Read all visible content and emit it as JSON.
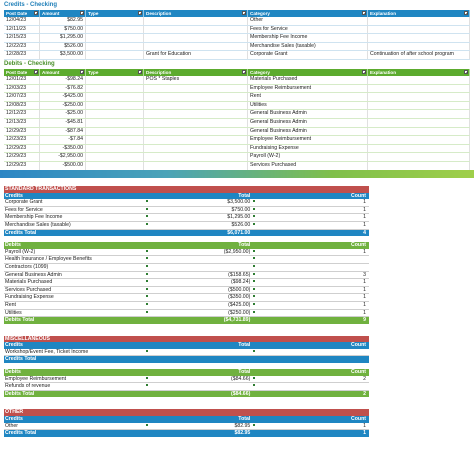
{
  "ledger_headers": {
    "post_date": "Post Date",
    "amount": "Amount",
    "type": "Type",
    "description": "Description",
    "category": "Category",
    "explanation": "Explanation"
  },
  "credits": {
    "title": "Credits - Checking",
    "rows": [
      {
        "date": "12/04/23",
        "amount": "$82.95",
        "type": "",
        "description": "",
        "category": "Other",
        "explanation": ""
      },
      {
        "date": "12/11/23",
        "amount": "$750.00",
        "type": "",
        "description": "",
        "category": "Fees for Service",
        "explanation": ""
      },
      {
        "date": "12/15/23",
        "amount": "$1,295.00",
        "type": "",
        "description": "",
        "category": "Membership Fee Income",
        "explanation": ""
      },
      {
        "date": "12/22/23",
        "amount": "$526.00",
        "type": "",
        "description": "",
        "category": "Merchandise Sales (taxable)",
        "explanation": ""
      },
      {
        "date": "12/28/23",
        "amount": "$3,500.00",
        "type": "",
        "description": "Grant for Education",
        "category": "Corporate Grant",
        "explanation": "Continuation of after school program"
      }
    ]
  },
  "debits": {
    "title": "Debits - Checking",
    "rows": [
      {
        "date": "12/01/23",
        "amount": "-$98.24",
        "type": "",
        "description": "POS * Staples",
        "category": "Materials Purchased",
        "explanation": ""
      },
      {
        "date": "12/03/23",
        "amount": "-$76.82",
        "type": "",
        "description": "",
        "category": "Employee Reimbursement",
        "explanation": ""
      },
      {
        "date": "12/07/23",
        "amount": "-$425.00",
        "type": "",
        "description": "",
        "category": "Rent",
        "explanation": ""
      },
      {
        "date": "12/08/23",
        "amount": "-$250.00",
        "type": "",
        "description": "",
        "category": "Utilities",
        "explanation": ""
      },
      {
        "date": "12/12/23",
        "amount": "-$25.00",
        "type": "",
        "description": "",
        "category": "General Business Admin",
        "explanation": ""
      },
      {
        "date": "12/13/23",
        "amount": "-$45.81",
        "type": "",
        "description": "",
        "category": "General Business Admin",
        "explanation": ""
      },
      {
        "date": "12/29/23",
        "amount": "-$87.84",
        "type": "",
        "description": "",
        "category": "General Business Admin",
        "explanation": ""
      },
      {
        "date": "12/23/23",
        "amount": "-$7.84",
        "type": "",
        "description": "",
        "category": "Employee Reimbursement",
        "explanation": ""
      },
      {
        "date": "12/29/23",
        "amount": "-$350.00",
        "type": "",
        "description": "",
        "category": "Fundraising Expense",
        "explanation": ""
      },
      {
        "date": "12/29/23",
        "amount": "-$2,950.00",
        "type": "",
        "description": "",
        "category": "Payroll (W-2)",
        "explanation": ""
      },
      {
        "date": "12/29/23",
        "amount": "-$500.00",
        "type": "",
        "description": "",
        "category": "Services Purchased",
        "explanation": ""
      }
    ]
  },
  "summary": {
    "standard": {
      "title": "STANDARD TRANSACTIONS",
      "credits": {
        "label": "Credits",
        "total_label": "Total",
        "count_label": "Count",
        "rows": [
          {
            "name": "Corporate Grant",
            "total": "$3,500.00",
            "count": "1"
          },
          {
            "name": "Fees for Service",
            "total": "$750.00",
            "count": "1"
          },
          {
            "name": "Membership Fee Income",
            "total": "$1,295.00",
            "count": "1"
          },
          {
            "name": "Merchandise Sales (taxable)",
            "total": "$526.00",
            "count": "1"
          }
        ],
        "total_row": {
          "name": "Credits Total",
          "total": "$6,071.00",
          "count": "4"
        }
      },
      "debits": {
        "label": "Debits",
        "total_label": "Total",
        "count_label": "Count",
        "rows": [
          {
            "name": "Payroll (W-2)",
            "total": "($2,950.00)",
            "count": "1"
          },
          {
            "name": "Health Insurance / Employee Benefits",
            "total": "",
            "count": ""
          },
          {
            "name": "Contractors (1099)",
            "total": "",
            "count": ""
          },
          {
            "name": "General Business Admin",
            "total": "($158.65)",
            "count": "3"
          },
          {
            "name": "Materials Purchased",
            "total": "($98.24)",
            "count": "1"
          },
          {
            "name": "Services Purchased",
            "total": "($500.00)",
            "count": "1"
          },
          {
            "name": "Fundraising Expense",
            "total": "($350.00)",
            "count": "1"
          },
          {
            "name": "Rent",
            "total": "($425.00)",
            "count": "1"
          },
          {
            "name": "Utilities",
            "total": "($250.00)",
            "count": "1"
          }
        ],
        "total_row": {
          "name": "Debits Total",
          "total": "($4,731.89)",
          "count": "9"
        }
      }
    },
    "misc": {
      "title": "MISCELLANEOUS",
      "credits": {
        "label": "Credits",
        "total_label": "Total",
        "count_label": "Count",
        "rows": [
          {
            "name": "Workshop/Event Fee, Ticket Income",
            "total": "",
            "count": ""
          }
        ],
        "total_row": {
          "name": "Credits Total",
          "total": "",
          "count": ""
        }
      },
      "debits": {
        "label": "Debits",
        "total_label": "Total",
        "count_label": "Count",
        "rows": [
          {
            "name": "Employee Reimbursement",
            "total": "($84.66)",
            "count": "2"
          },
          {
            "name": "Refunds of revenue",
            "total": "",
            "count": ""
          }
        ],
        "total_row": {
          "name": "Debits Total",
          "total": "($84.66)",
          "count": "2"
        }
      }
    },
    "other": {
      "title": "OTHER",
      "credits": {
        "label": "Credits",
        "total_label": "Total",
        "count_label": "Count",
        "rows": [
          {
            "name": "Other",
            "total": "$82.95",
            "count": "1"
          }
        ],
        "total_row": {
          "name": "Credits Total",
          "total": "$82.95",
          "count": "1"
        }
      }
    }
  },
  "colors": {
    "blue": "#1f86c2",
    "green": "#5cab2e",
    "red": "#c0504d"
  }
}
